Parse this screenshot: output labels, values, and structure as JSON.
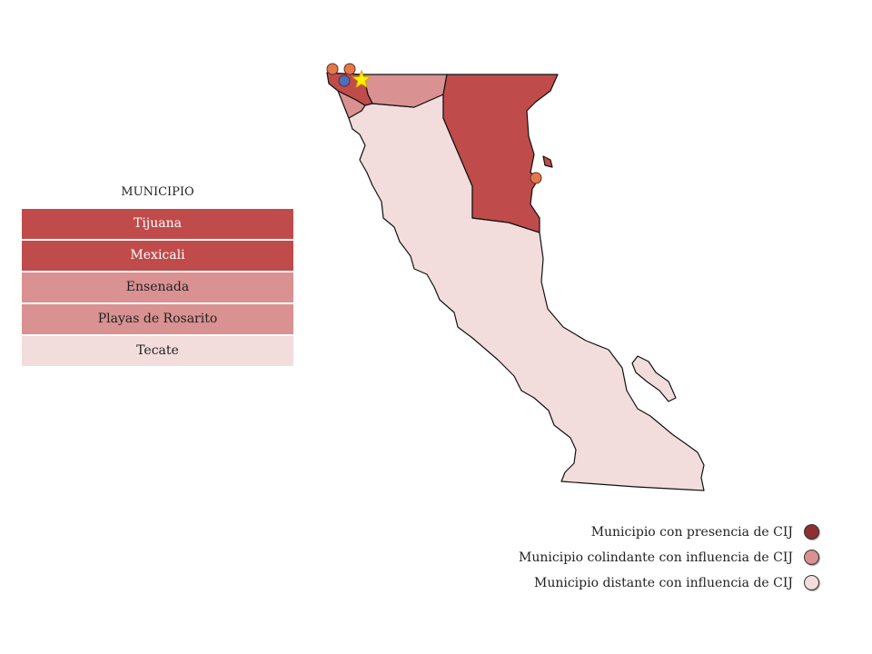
{
  "municipio_table": {
    "title": "MUNICIPIO",
    "rows": [
      {
        "name": "Tijuana",
        "color": "#c04b4b",
        "text_color": "#ffffff"
      },
      {
        "name": "Mexicali",
        "color": "#c04b4b",
        "text_color": "#ffffff"
      },
      {
        "name": "Ensenada",
        "color": "#d99191",
        "text_color": "#222222"
      },
      {
        "name": "Playas de Rosarito",
        "color": "#d99191",
        "text_color": "#222222"
      },
      {
        "name": "Tecate",
        "color": "#f2dcdc",
        "text_color": "#222222"
      }
    ]
  },
  "legend": {
    "items": [
      {
        "label": "Municipio con presencia de CIJ",
        "color": "#8f2f2f"
      },
      {
        "label": "Municipio colindante con influencia de CIJ",
        "color": "#d99191"
      },
      {
        "label": "Municipio distante con influencia de CIJ",
        "color": "#f2dcdc"
      }
    ]
  },
  "map": {
    "colors": {
      "presencia": "#c04b4b",
      "colindante": "#d99191",
      "distante": "#f2dcdc",
      "outline": "#111111",
      "marker_star": "#ffee00",
      "marker_orange": "#e07a4a",
      "marker_blue": "#4a70c0"
    },
    "markers": [
      {
        "type": "orange-marker-icon"
      },
      {
        "type": "orange-marker-icon"
      },
      {
        "type": "blue-marker-icon"
      },
      {
        "type": "star-icon"
      },
      {
        "type": "orange-marker-icon"
      }
    ]
  }
}
